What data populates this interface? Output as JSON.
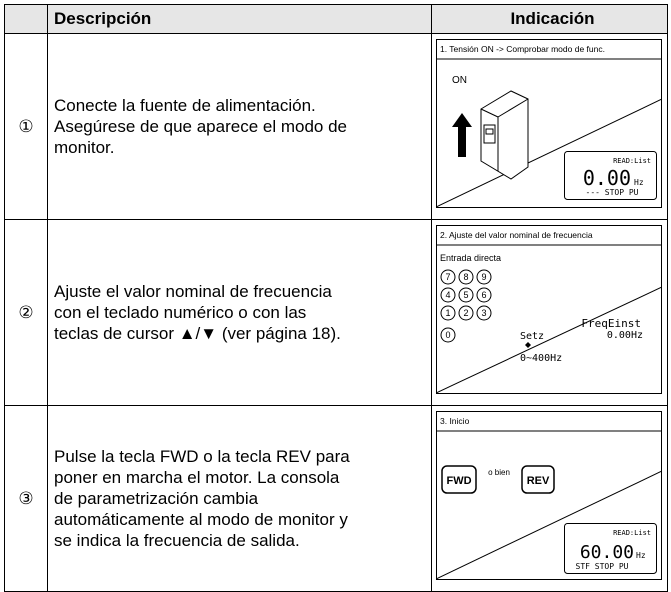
{
  "table": {
    "header": [
      "Descripción",
      "Indicación"
    ],
    "rows": [
      {
        "number": "①",
        "description": [
          "Conecte la fuente de alimentación.",
          "Asegúrese de que aparece el modo de",
          "monitor."
        ],
        "panel": {
          "title": "1. Tensión ON -> Comprobar modo de func.",
          "switch_label": "ON",
          "display": {
            "mode": "READ:List",
            "value": "0.00",
            "unit": "Hz",
            "status": "--- STOP PU"
          }
        }
      },
      {
        "number": "②",
        "description": [
          "Ajuste el valor nominal de frecuencia",
          "con el teclado numérico o con las",
          "teclas de cursor ▲/▼ (ver página 18)."
        ],
        "panel": {
          "title": "2. Ajuste del valor nominal de frecuencia",
          "subtitle": "Entrada directa",
          "keys": [
            "7",
            "8",
            "9",
            "4",
            "5",
            "6",
            "1",
            "2",
            "3",
            "0"
          ],
          "display": {
            "heading": "FreqEinst",
            "label": "Setz",
            "value": "0.00Hz",
            "range": "0~400Hz"
          }
        }
      },
      {
        "number": "③",
        "description": [
          "Pulse la tecla FWD o la tecla REV para",
          "poner en marcha el motor. La consola",
          "de parametrización cambia",
          "automáticamente al modo de monitor y",
          "se indica la frecuencia de salida."
        ],
        "panel": {
          "title": "3. Inicio",
          "fwd": "FWD",
          "or": "o bien",
          "rev": "REV",
          "display": {
            "mode": "READ:List",
            "value": "60.00",
            "unit": "Hz",
            "status": "STF STOP PU"
          }
        }
      }
    ]
  }
}
